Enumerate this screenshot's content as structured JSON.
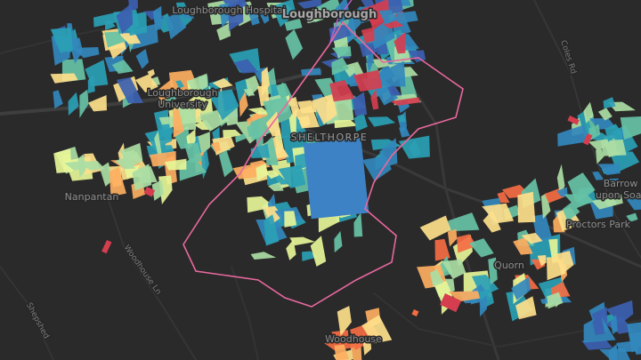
{
  "map": {
    "places": [
      {
        "lines": [
          "Loughborough Hospital"
        ]
      },
      {
        "lines": [
          "Loughborough"
        ]
      },
      {
        "lines": [
          "Loughborough",
          "University"
        ]
      },
      {
        "lines": [
          "SHELTHORPE"
        ]
      },
      {
        "lines": [
          "Nanpantan"
        ]
      },
      {
        "lines": [
          "Quorn"
        ]
      },
      {
        "lines": [
          "Barrow",
          "upon Soar"
        ]
      },
      {
        "lines": [
          "Proctors Park"
        ]
      },
      {
        "lines": [
          "Woodhouse"
        ]
      }
    ],
    "roads": [
      {
        "name": "Coles Rd"
      },
      {
        "name": "Woodhouse Ln"
      },
      {
        "name": "Shepshed"
      }
    ]
  }
}
